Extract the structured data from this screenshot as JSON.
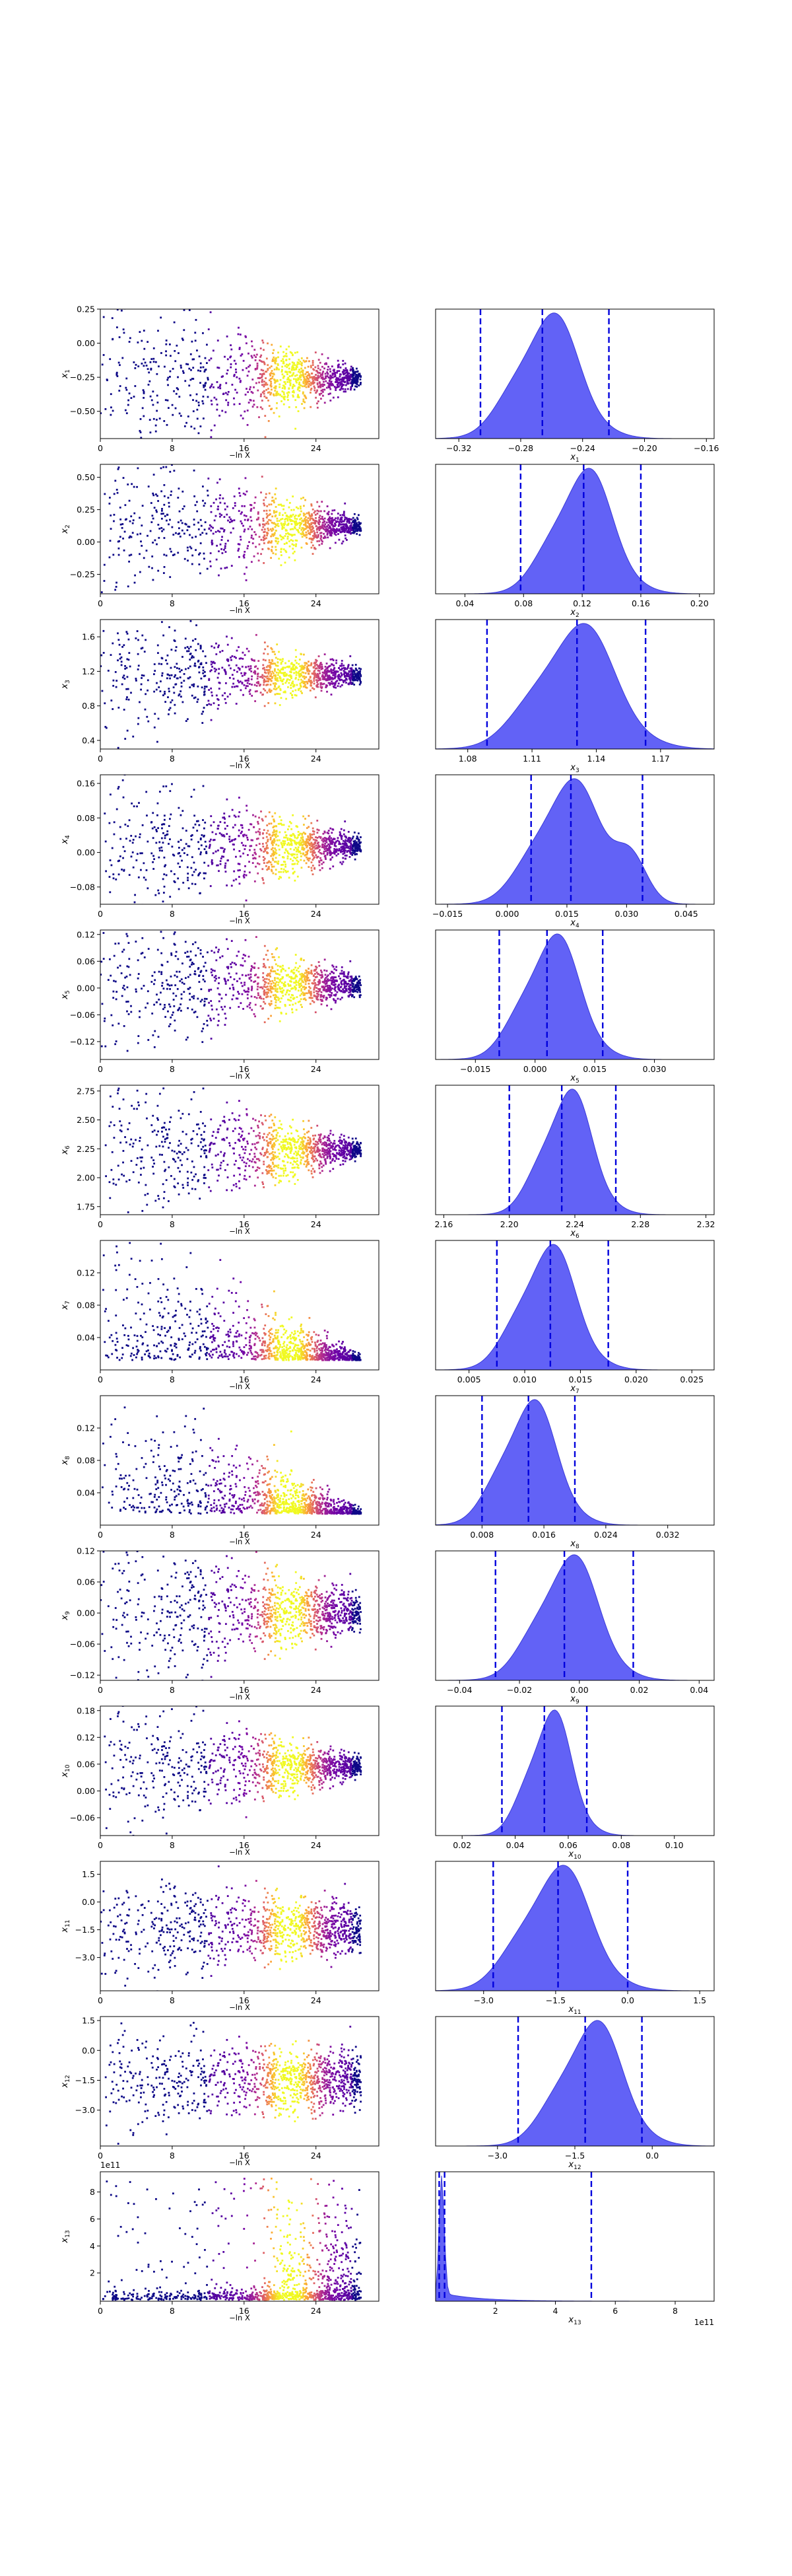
{
  "figure": {
    "shared_xlabel_left": "−ln X",
    "colormap": [
      "#0d0887",
      "#6a00a8",
      "#b12a90",
      "#e16462",
      "#fca636",
      "#f0f921"
    ]
  },
  "style": {
    "kde_fill": "#5a5af5",
    "kde_edge": "#3a3ad8",
    "quantile_line": "#0000dd"
  },
  "chart_data": [
    {
      "type": "scatter",
      "param": "x1",
      "ylabel": "x1",
      "xlabel": "−ln X",
      "xlim": [
        0,
        31
      ],
      "xticks": [
        0,
        8,
        16,
        24
      ],
      "ylim": [
        -0.7,
        0.25
      ],
      "yticks": [
        0.25,
        0,
        -0.25,
        -0.5
      ],
      "yticklabels": [
        "0.25",
        "0.00",
        "−0.25",
        "−0.50"
      ],
      "center": -0.26,
      "spread_start": 0.3,
      "spread_end": 0.03
    },
    {
      "type": "area",
      "param": "x1",
      "xlabel": "x1",
      "xlim": [
        -0.335,
        -0.155
      ],
      "xticks": [
        -0.32,
        -0.28,
        -0.24,
        -0.2,
        -0.16
      ],
      "xticklabels": [
        "−0.32",
        "−0.28",
        "−0.24",
        "−0.20",
        "−0.16"
      ],
      "mean": -0.263,
      "sd": 0.02,
      "quantiles": [
        -0.306,
        -0.266,
        -0.223
      ]
    },
    {
      "type": "scatter",
      "param": "x2",
      "ylabel": "x2",
      "xlabel": "−ln X",
      "xlim": [
        0,
        31
      ],
      "xticks": [
        0,
        8,
        16,
        24
      ],
      "ylim": [
        -0.4,
        0.6
      ],
      "yticks": [
        0.5,
        0.25,
        0,
        -0.25
      ],
      "yticklabels": [
        "0.50",
        "0.25",
        "0.00",
        "−0.25"
      ],
      "center": 0.12,
      "spread_start": 0.3,
      "spread_end": 0.03
    },
    {
      "type": "area",
      "param": "x2",
      "xlabel": "x2",
      "xlim": [
        0.02,
        0.21
      ],
      "xticks": [
        0.04,
        0.08,
        0.12,
        0.16,
        0.2
      ],
      "xticklabels": [
        "0.04",
        "0.08",
        "0.12",
        "0.16",
        "0.20"
      ],
      "mean": 0.12,
      "sd": 0.02,
      "quantiles": [
        0.078,
        0.121,
        0.16
      ]
    },
    {
      "type": "scatter",
      "param": "x3",
      "ylabel": "x3",
      "xlabel": "−ln X",
      "xlim": [
        0,
        31
      ],
      "xticks": [
        0,
        8,
        16,
        24
      ],
      "ylim": [
        0.3,
        1.8
      ],
      "yticks": [
        1.6,
        1.2,
        0.8,
        0.4
      ],
      "yticklabels": [
        "1.6",
        "1.2",
        "0.8",
        "0.4"
      ],
      "center": 1.15,
      "spread_start": 0.35,
      "spread_end": 0.04
    },
    {
      "type": "area",
      "param": "x3",
      "xlabel": "x3",
      "xlim": [
        1.065,
        1.195
      ],
      "xticks": [
        1.08,
        1.11,
        1.14,
        1.17
      ],
      "xticklabels": [
        "1.08",
        "1.11",
        "1.14",
        "1.17"
      ],
      "mean": 1.13,
      "sd": 0.018,
      "quantiles": [
        1.089,
        1.131,
        1.163
      ]
    },
    {
      "type": "scatter",
      "param": "x4",
      "ylabel": "x4",
      "xlabel": "−ln X",
      "xlim": [
        0,
        31
      ],
      "xticks": [
        0,
        8,
        16,
        24
      ],
      "ylim": [
        -0.12,
        0.18
      ],
      "yticks": [
        0.16,
        0.08,
        0,
        -0.08
      ],
      "yticklabels": [
        "0.16",
        "0.08",
        "0.00",
        "−0.08"
      ],
      "center": 0.015,
      "spread_start": 0.09,
      "spread_end": 0.01
    },
    {
      "type": "area",
      "param": "x4",
      "xlabel": "x4",
      "xlim": [
        -0.018,
        0.052
      ],
      "xticks": [
        -0.015,
        0,
        0.015,
        0.03,
        0.045
      ],
      "xticklabels": [
        "−0.015",
        "0.000",
        "0.015",
        "0.030",
        "0.045"
      ],
      "mean": 0.015,
      "sd": 0.008,
      "quantiles": [
        0.006,
        0.016,
        0.034
      ]
    },
    {
      "type": "scatter",
      "param": "x5",
      "ylabel": "x5",
      "xlabel": "−ln X",
      "xlim": [
        0,
        31
      ],
      "xticks": [
        0,
        8,
        16,
        24
      ],
      "ylim": [
        -0.16,
        0.13
      ],
      "yticks": [
        0.12,
        0.06,
        0,
        -0.06,
        -0.12
      ],
      "yticklabels": [
        "0.12",
        "0.06",
        "0.00",
        "−0.06",
        "−0.12"
      ],
      "center": 0.005,
      "spread_start": 0.08,
      "spread_end": 0.01
    },
    {
      "type": "area",
      "param": "x5",
      "xlabel": "x5",
      "xlim": [
        -0.025,
        0.045
      ],
      "xticks": [
        -0.015,
        0,
        0.015,
        0.03
      ],
      "xticklabels": [
        "−0.015",
        "0.000",
        "0.015",
        "0.030"
      ],
      "mean": 0.004,
      "sd": 0.007,
      "quantiles": [
        -0.009,
        0.003,
        0.017
      ]
    },
    {
      "type": "scatter",
      "param": "x6",
      "ylabel": "x6",
      "xlabel": "−ln X",
      "xlim": [
        0,
        31
      ],
      "xticks": [
        0,
        8,
        16,
        24
      ],
      "ylim": [
        1.68,
        2.8
      ],
      "yticks": [
        2.75,
        2.5,
        2.25,
        2.0,
        1.75
      ],
      "yticklabels": [
        "2.75",
        "2.50",
        "2.25",
        "2.00",
        "1.75"
      ],
      "center": 2.24,
      "spread_start": 0.35,
      "spread_end": 0.03
    },
    {
      "type": "area",
      "param": "x6",
      "xlabel": "x6",
      "xlim": [
        2.155,
        2.325
      ],
      "xticks": [
        2.16,
        2.2,
        2.24,
        2.28,
        2.32
      ],
      "xticklabels": [
        "2.16",
        "2.20",
        "2.24",
        "2.28",
        "2.32"
      ],
      "mean": 2.235,
      "sd": 0.015,
      "quantiles": [
        2.2,
        2.232,
        2.265
      ]
    },
    {
      "type": "scatter",
      "param": "x7",
      "ylabel": "x7",
      "xlabel": "−ln X",
      "xlim": [
        0,
        31
      ],
      "xticks": [
        0,
        8,
        16,
        24
      ],
      "ylim": [
        0,
        0.16
      ],
      "yticks": [
        0.12,
        0.08,
        0.04
      ],
      "yticklabels": [
        "0.12",
        "0.08",
        "0.04"
      ],
      "center": 0.012,
      "spread_start": 0.08,
      "spread_end": 0.003
    },
    {
      "type": "area",
      "param": "x7",
      "xlabel": "x7",
      "xlim": [
        0.002,
        0.027
      ],
      "xticks": [
        0.005,
        0.01,
        0.015,
        0.02,
        0.025
      ],
      "xticklabels": [
        "0.005",
        "0.010",
        "0.015",
        "0.020",
        "0.025"
      ],
      "mean": 0.012,
      "sd": 0.0025,
      "quantiles": [
        0.0075,
        0.0123,
        0.0175
      ]
    },
    {
      "type": "scatter",
      "param": "x8",
      "ylabel": "x8",
      "xlabel": "−ln X",
      "xlim": [
        0,
        31
      ],
      "xticks": [
        0,
        8,
        16,
        24
      ],
      "ylim": [
        0,
        0.16
      ],
      "yticks": [
        0.12,
        0.08,
        0.04
      ],
      "yticklabels": [
        "0.12",
        "0.08",
        "0.04"
      ],
      "center": 0.014,
      "spread_start": 0.08,
      "spread_end": 0.003
    },
    {
      "type": "area",
      "param": "x8",
      "xlabel": "x8",
      "xlim": [
        0.002,
        0.038
      ],
      "xticks": [
        0.008,
        0.016,
        0.024,
        0.032
      ],
      "xticklabels": [
        "0.008",
        "0.016",
        "0.024",
        "0.032"
      ],
      "mean": 0.014,
      "sd": 0.0035,
      "quantiles": [
        0.008,
        0.014,
        0.02
      ]
    },
    {
      "type": "scatter",
      "param": "x9",
      "ylabel": "x9",
      "xlabel": "−ln X",
      "xlim": [
        0,
        31
      ],
      "xticks": [
        0,
        8,
        16,
        24
      ],
      "ylim": [
        -0.13,
        0.12
      ],
      "yticks": [
        0.12,
        0.06,
        0,
        -0.06,
        -0.12
      ],
      "yticklabels": [
        "0.12",
        "0.06",
        "0.00",
        "−0.06",
        "−0.12"
      ],
      "center": 0,
      "spread_start": 0.08,
      "spread_end": 0.015
    },
    {
      "type": "area",
      "param": "x9",
      "xlabel": "x9",
      "xlim": [
        -0.048,
        0.045
      ],
      "xticks": [
        -0.04,
        -0.02,
        0,
        0.02,
        0.04
      ],
      "xticklabels": [
        "−0.04",
        "−0.02",
        "0.00",
        "0.02",
        "0.04"
      ],
      "mean": -0.004,
      "sd": 0.01,
      "quantiles": [
        -0.028,
        -0.005,
        0.018
      ]
    },
    {
      "type": "scatter",
      "param": "x10",
      "ylabel": "x10",
      "xlabel": "−ln X",
      "xlim": [
        0,
        31
      ],
      "xticks": [
        0,
        8,
        16,
        24
      ],
      "ylim": [
        -0.1,
        0.19
      ],
      "yticks": [
        0.18,
        0.12,
        0.06,
        0,
        -0.06
      ],
      "yticklabels": [
        "0.18",
        "0.12",
        "0.06",
        "0.00",
        "−0.06"
      ],
      "center": 0.055,
      "spread_start": 0.08,
      "spread_end": 0.01
    },
    {
      "type": "area",
      "param": "x10",
      "xlabel": "x10",
      "xlim": [
        0.01,
        0.115
      ],
      "xticks": [
        0.02,
        0.04,
        0.06,
        0.08,
        0.1
      ],
      "xticklabels": [
        "0.02",
        "0.04",
        "0.06",
        "0.08",
        "0.10"
      ],
      "mean": 0.053,
      "sd": 0.008,
      "quantiles": [
        0.035,
        0.051,
        0.067
      ]
    },
    {
      "type": "scatter",
      "param": "x11",
      "ylabel": "x11",
      "xlabel": "−ln X",
      "xlim": [
        0,
        31
      ],
      "xticks": [
        0,
        8,
        16,
        24
      ],
      "ylim": [
        -4.8,
        2.2
      ],
      "yticks": [
        1.5,
        0,
        -1.5,
        -3.0
      ],
      "yticklabels": [
        "1.5",
        "0.0",
        "−1.5",
        "−3.0"
      ],
      "center": -1.5,
      "spread_start": 1.4,
      "spread_end": 0.6
    },
    {
      "type": "area",
      "param": "x11",
      "xlabel": "x11",
      "xlim": [
        -4.0,
        1.8
      ],
      "xticks": [
        -3,
        -1.5,
        0,
        1.5
      ],
      "xticklabels": [
        "−3.0",
        "−1.5",
        "0.0",
        "1.5"
      ],
      "mean": -1.5,
      "sd": 0.7,
      "quantiles": [
        -2.8,
        -1.45,
        0.0
      ]
    },
    {
      "type": "scatter",
      "param": "x12",
      "ylabel": "x12",
      "xlabel": "−ln X",
      "xlim": [
        0,
        31
      ],
      "xticks": [
        0,
        8,
        16,
        24
      ],
      "ylim": [
        -4.8,
        1.7
      ],
      "yticks": [
        1.5,
        0,
        -1.5,
        -3.0
      ],
      "yticklabels": [
        "1.5",
        "0.0",
        "−1.5",
        "−3.0"
      ],
      "center": -1.5,
      "spread_start": 1.3,
      "spread_end": 0.6
    },
    {
      "type": "area",
      "param": "x12",
      "xlabel": "x12",
      "xlim": [
        -4.2,
        1.2
      ],
      "xticks": [
        -3,
        -1.5,
        0
      ],
      "xticklabels": [
        "−3.0",
        "−1.5",
        "0.0"
      ],
      "mean": -1.2,
      "sd": 0.6,
      "quantiles": [
        -2.6,
        -1.3,
        -0.2
      ]
    },
    {
      "type": "scatter",
      "param": "x13",
      "ylabel": "x13",
      "xlabel": "−ln X",
      "xlim": [
        0,
        31
      ],
      "xticks": [
        0,
        8,
        16,
        24
      ],
      "ylim": [
        -0.1,
        9.5
      ],
      "yticks": [
        8,
        6,
        4,
        2
      ],
      "yticklabels": [
        "8",
        "6",
        "4",
        "2"
      ],
      "offset_label": "1e11",
      "center": 0.3,
      "spread_start": 0.5,
      "spread_end": 3.0
    },
    {
      "type": "area",
      "param": "x13",
      "xlabel": "x13",
      "xlim": [
        0,
        9.3
      ],
      "xticks": [
        2,
        4,
        6,
        8
      ],
      "xticklabels": [
        "2",
        "4",
        "6",
        "8"
      ],
      "offset_label": "1e11",
      "mean": 0.2,
      "sd": 0.1,
      "quantiles": [
        0.12,
        0.3,
        5.2
      ]
    }
  ]
}
